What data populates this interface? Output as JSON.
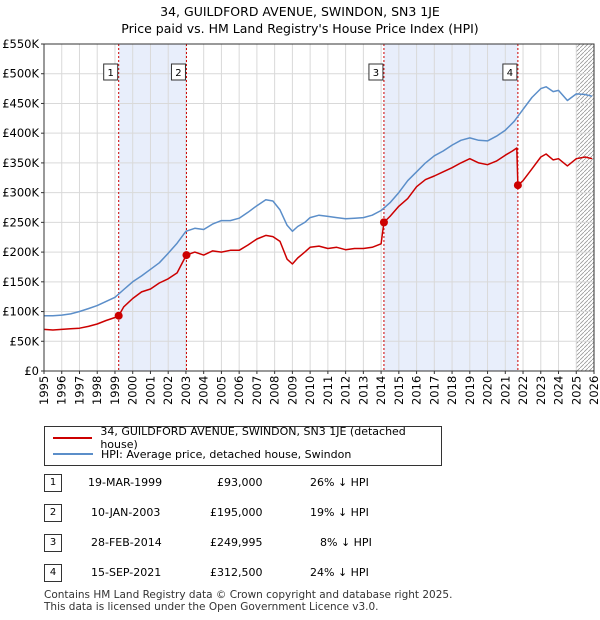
{
  "title": "34, GUILDFORD AVENUE, SWINDON, SN3 1JE",
  "subtitle": "Price paid vs. HM Land Registry's House Price Index (HPI)",
  "colors": {
    "property": "#cc0000",
    "hpi": "#5b8ec9",
    "shade": "#e8eefb",
    "marker": "#cc0000"
  },
  "chart_data": {
    "type": "line",
    "xlim": [
      1995,
      2026
    ],
    "ylim": [
      0,
      550000
    ],
    "y_ticks": [
      0,
      50000,
      100000,
      150000,
      200000,
      250000,
      300000,
      350000,
      400000,
      450000,
      500000,
      550000
    ],
    "y_tick_labels": [
      "£0",
      "£50K",
      "£100K",
      "£150K",
      "£200K",
      "£250K",
      "£300K",
      "£350K",
      "£400K",
      "£450K",
      "£500K",
      "£550K"
    ],
    "x_ticks": [
      1995,
      1996,
      1997,
      1998,
      1999,
      2000,
      2001,
      2002,
      2003,
      2004,
      2005,
      2006,
      2007,
      2008,
      2009,
      2010,
      2011,
      2012,
      2013,
      2014,
      2015,
      2016,
      2017,
      2018,
      2019,
      2020,
      2021,
      2022,
      2023,
      2024,
      2025,
      2026
    ],
    "x_tick_labels": [
      "1995",
      "1996",
      "1997",
      "1998",
      "1999",
      "2000",
      "2001",
      "2002",
      "2003",
      "2004",
      "2005",
      "2006",
      "2007",
      "2008",
      "2009",
      "2010",
      "2011",
      "2012",
      "2013",
      "2014",
      "2015",
      "2016",
      "2017",
      "2018",
      "2019",
      "2020",
      "2021",
      "2022",
      "2023",
      "2024",
      "2025",
      "2026"
    ],
    "series": [
      {
        "name": "34, GUILDFORD AVENUE, SWINDON, SN3 1JE (detached house)",
        "x": [
          1995.0,
          1995.5,
          1996.0,
          1996.5,
          1997.0,
          1997.5,
          1998.0,
          1998.5,
          1999.0,
          1999.21,
          1999.5,
          2000.0,
          2000.5,
          2001.0,
          2001.5,
          2002.0,
          2002.5,
          2003.02,
          2003.5,
          2004.0,
          2004.5,
          2005.0,
          2005.5,
          2006.0,
          2006.5,
          2007.0,
          2007.5,
          2007.9,
          2008.3,
          2008.7,
          2009.0,
          2009.3,
          2009.7,
          2010.0,
          2010.5,
          2011.0,
          2011.5,
          2012.0,
          2012.5,
          2013.0,
          2013.5,
          2014.0,
          2014.16,
          2014.5,
          2015.0,
          2015.5,
          2016.0,
          2016.5,
          2017.0,
          2017.5,
          2018.0,
          2018.5,
          2019.0,
          2019.5,
          2020.0,
          2020.5,
          2021.0,
          2021.4,
          2021.65,
          2021.71,
          2022.0,
          2022.5,
          2023.0,
          2023.3,
          2023.7,
          2024.0,
          2024.5,
          2025.0,
          2025.5,
          2025.9
        ],
        "values": [
          70000,
          69000,
          70000,
          71000,
          72000,
          75000,
          79000,
          85000,
          90000,
          93000,
          108000,
          122000,
          133000,
          138000,
          148000,
          155000,
          165000,
          195000,
          200000,
          195000,
          202000,
          200000,
          203000,
          203000,
          212000,
          222000,
          228000,
          226000,
          218000,
          188000,
          180000,
          190000,
          200000,
          208000,
          210000,
          206000,
          208000,
          204000,
          206000,
          206000,
          208000,
          214000,
          249995,
          260000,
          277000,
          290000,
          310000,
          322000,
          328000,
          335000,
          342000,
          350000,
          357000,
          350000,
          347000,
          353000,
          363000,
          370000,
          375000,
          312500,
          320000,
          340000,
          360000,
          365000,
          355000,
          357000,
          345000,
          357000,
          360000,
          357000
        ]
      },
      {
        "name": "HPI: Average price, detached house, Swindon",
        "x": [
          1995.0,
          1995.5,
          1996.0,
          1996.5,
          1997.0,
          1997.5,
          1998.0,
          1998.5,
          1999.0,
          1999.5,
          2000.0,
          2000.5,
          2001.0,
          2001.5,
          2002.0,
          2002.5,
          2003.0,
          2003.5,
          2004.0,
          2004.5,
          2005.0,
          2005.5,
          2006.0,
          2006.5,
          2007.0,
          2007.5,
          2007.9,
          2008.3,
          2008.7,
          2009.0,
          2009.3,
          2009.7,
          2010.0,
          2010.5,
          2011.0,
          2011.5,
          2012.0,
          2012.5,
          2013.0,
          2013.5,
          2014.0,
          2014.5,
          2015.0,
          2015.5,
          2016.0,
          2016.5,
          2017.0,
          2017.5,
          2018.0,
          2018.5,
          2019.0,
          2019.5,
          2020.0,
          2020.5,
          2021.0,
          2021.5,
          2022.0,
          2022.5,
          2023.0,
          2023.3,
          2023.7,
          2024.0,
          2024.5,
          2025.0,
          2025.5,
          2025.9
        ],
        "values": [
          93000,
          93000,
          94000,
          96000,
          100000,
          105000,
          110000,
          117000,
          124000,
          137000,
          150000,
          160000,
          171000,
          182000,
          198000,
          215000,
          235000,
          240000,
          238000,
          247000,
          253000,
          253000,
          257000,
          267000,
          278000,
          288000,
          286000,
          271000,
          245000,
          235000,
          243000,
          250000,
          258000,
          262000,
          260000,
          258000,
          256000,
          257000,
          258000,
          262000,
          270000,
          283000,
          300000,
          320000,
          335000,
          350000,
          362000,
          370000,
          380000,
          388000,
          392000,
          388000,
          387000,
          395000,
          405000,
          420000,
          440000,
          460000,
          475000,
          478000,
          470000,
          472000,
          455000,
          466000,
          465000,
          462000
        ]
      }
    ],
    "sales": [
      {
        "n": "1",
        "x": 1999.21,
        "value": 93000
      },
      {
        "n": "2",
        "x": 2003.03,
        "value": 195000
      },
      {
        "n": "3",
        "x": 2014.16,
        "value": 249995
      },
      {
        "n": "4",
        "x": 2021.71,
        "value": 312500
      }
    ],
    "shaded_ranges": [
      [
        1999.21,
        2003.03
      ],
      [
        2014.16,
        2021.71
      ]
    ],
    "hatched_from": 2025.0
  },
  "legend": {
    "property": "34, GUILDFORD AVENUE, SWINDON, SN3 1JE (detached house)",
    "hpi": "HPI: Average price, detached house, Swindon"
  },
  "sales_table": [
    {
      "n": "1",
      "date": "19-MAR-1999",
      "price": "£93,000",
      "hpi": "26% ↓ HPI"
    },
    {
      "n": "2",
      "date": "10-JAN-2003",
      "price": "£195,000",
      "hpi": "19% ↓ HPI"
    },
    {
      "n": "3",
      "date": "28-FEB-2014",
      "price": "£249,995",
      "hpi": "8% ↓ HPI"
    },
    {
      "n": "4",
      "date": "15-SEP-2021",
      "price": "£312,500",
      "hpi": "24% ↓ HPI"
    }
  ],
  "footer": {
    "line1": "Contains HM Land Registry data © Crown copyright and database right 2025.",
    "line2": "This data is licensed under the Open Government Licence v3.0."
  }
}
